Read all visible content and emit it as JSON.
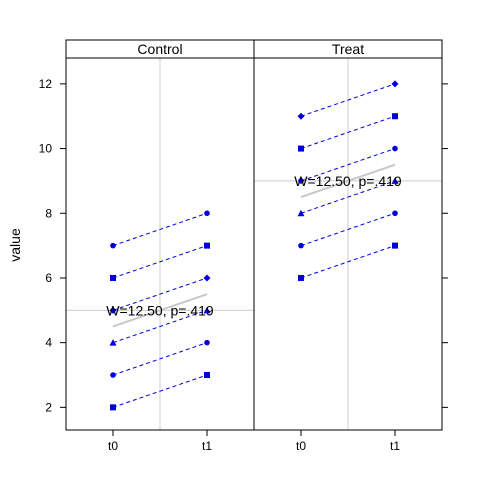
{
  "chart_data": {
    "type": "line",
    "ylabel": "value",
    "ylim": [
      1.3,
      12.8
    ],
    "yticks": [
      2,
      4,
      6,
      8,
      10,
      12
    ],
    "categories": [
      "t0",
      "t1"
    ],
    "grid": true,
    "panels": [
      {
        "name": "Control",
        "annotation": "W=12.50, p=.419",
        "series": [
          {
            "marker": "circle",
            "values": [
              7,
              8
            ]
          },
          {
            "marker": "square",
            "values": [
              6,
              7
            ]
          },
          {
            "marker": "diamond",
            "values": [
              5,
              6
            ]
          },
          {
            "marker": "triangle",
            "values": [
              4,
              5
            ]
          },
          {
            "marker": "circle",
            "values": [
              3,
              4
            ]
          },
          {
            "marker": "square",
            "values": [
              2,
              3
            ]
          }
        ],
        "mean_line": [
          4.5,
          5.5
        ],
        "reference_y": 5,
        "reference_x": 1.5
      },
      {
        "name": "Treat",
        "annotation": "W=12.50, p=.419",
        "series": [
          {
            "marker": "diamond",
            "values": [
              11,
              12
            ]
          },
          {
            "marker": "square",
            "values": [
              10,
              11
            ]
          },
          {
            "marker": "circle",
            "values": [
              9,
              10
            ]
          },
          {
            "marker": "triangle",
            "values": [
              8,
              9
            ]
          },
          {
            "marker": "circle",
            "values": [
              7,
              8
            ]
          },
          {
            "marker": "square",
            "values": [
              6,
              7
            ]
          }
        ],
        "mean_line": [
          8.5,
          9.5
        ],
        "reference_y": 9,
        "reference_x": 1.5
      }
    ],
    "colors": {
      "series": "#0000dd",
      "mean_line": "#c8c8c8",
      "grid": "#cccccc",
      "frame": "#000000"
    }
  }
}
